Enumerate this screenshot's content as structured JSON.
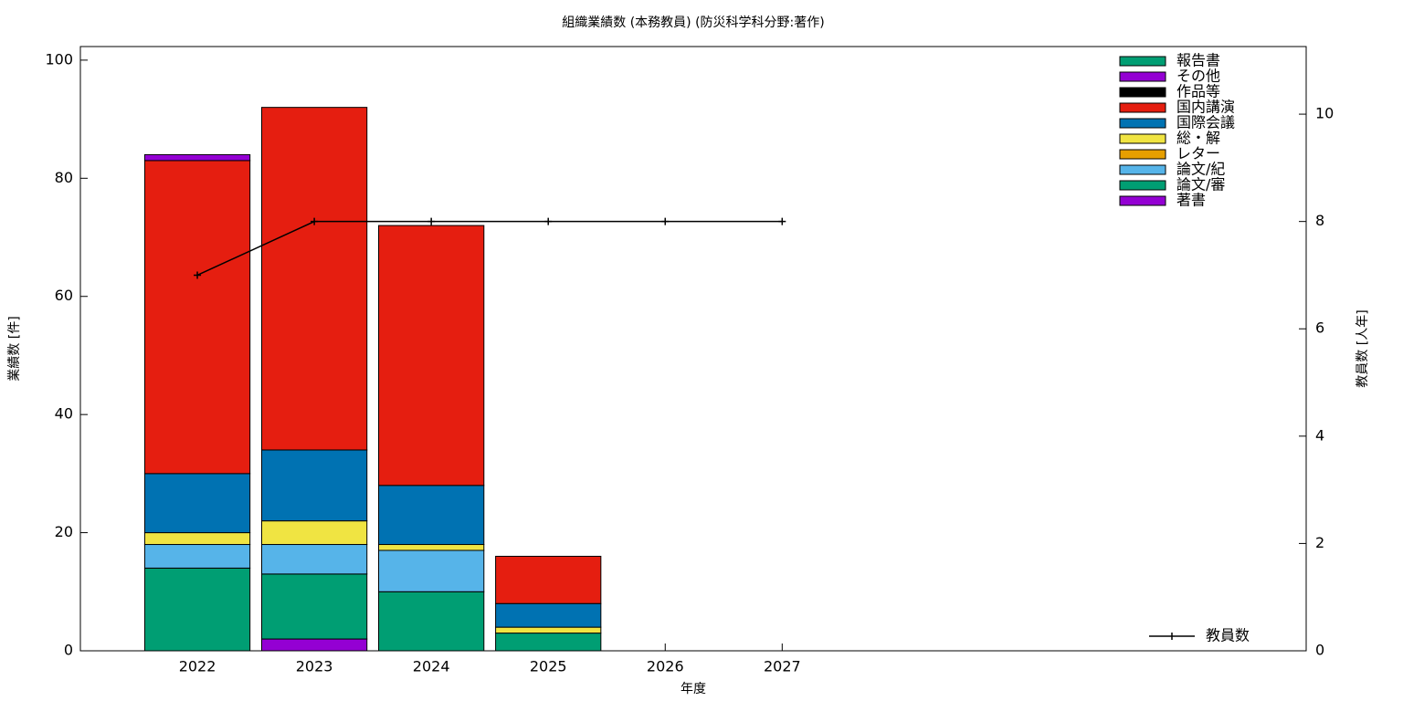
{
  "chart_data": {
    "type": "bar",
    "title": "組織業績数 (本務教員) (防災科学科分野:著作)",
    "xlabel": "年度",
    "ylabel": "業績数 [件]",
    "y2label": "教員数 [人年]",
    "x": [
      2022,
      2023,
      2024,
      2025,
      2026,
      2027
    ],
    "xlim": [
      2021,
      2031.48
    ],
    "xticks": [
      2022,
      2023,
      2024,
      2025,
      2026,
      2027
    ],
    "ylim": [
      0,
      102.3
    ],
    "yticks": [
      0,
      20,
      40,
      60,
      80,
      100
    ],
    "y2lim": [
      0,
      11.26
    ],
    "y2ticks": [
      0,
      2,
      4,
      6,
      8,
      10
    ],
    "stacked": true,
    "legend": "top-right",
    "series": [
      {
        "name": "著書",
        "color": "#9400d3",
        "values": [
          0,
          2,
          0,
          0,
          0,
          0
        ]
      },
      {
        "name": "論文/審",
        "color": "#009e73",
        "values": [
          14,
          11,
          10,
          3,
          0,
          0
        ]
      },
      {
        "name": "論文/紀",
        "color": "#56b4e9",
        "values": [
          4,
          5,
          7,
          0,
          0,
          0
        ]
      },
      {
        "name": "レター",
        "color": "#e69f00",
        "values": [
          0,
          0,
          0,
          0,
          0,
          0
        ]
      },
      {
        "name": "総・解",
        "color": "#f0e442",
        "values": [
          2,
          4,
          1,
          1,
          0,
          0
        ]
      },
      {
        "name": "国際会議",
        "color": "#0072b2",
        "values": [
          10,
          12,
          10,
          4,
          0,
          0
        ]
      },
      {
        "name": "国内講演",
        "color": "#e51e10",
        "values": [
          53,
          58,
          44,
          8,
          0,
          0
        ]
      },
      {
        "name": "作品等",
        "color": "#000000",
        "values": [
          0,
          0,
          0,
          0,
          0,
          0
        ]
      },
      {
        "name": "その他",
        "color": "#9400d3",
        "values": [
          1,
          0,
          0,
          0,
          0,
          0
        ]
      },
      {
        "name": "報告書",
        "color": "#009e73",
        "values": [
          0,
          0,
          0,
          0,
          0,
          0
        ]
      },
      {
        "name": "教員数",
        "color": "#000000",
        "type": "line",
        "axis": "y2",
        "values": [
          7,
          8,
          8,
          8,
          8,
          8
        ]
      }
    ]
  }
}
